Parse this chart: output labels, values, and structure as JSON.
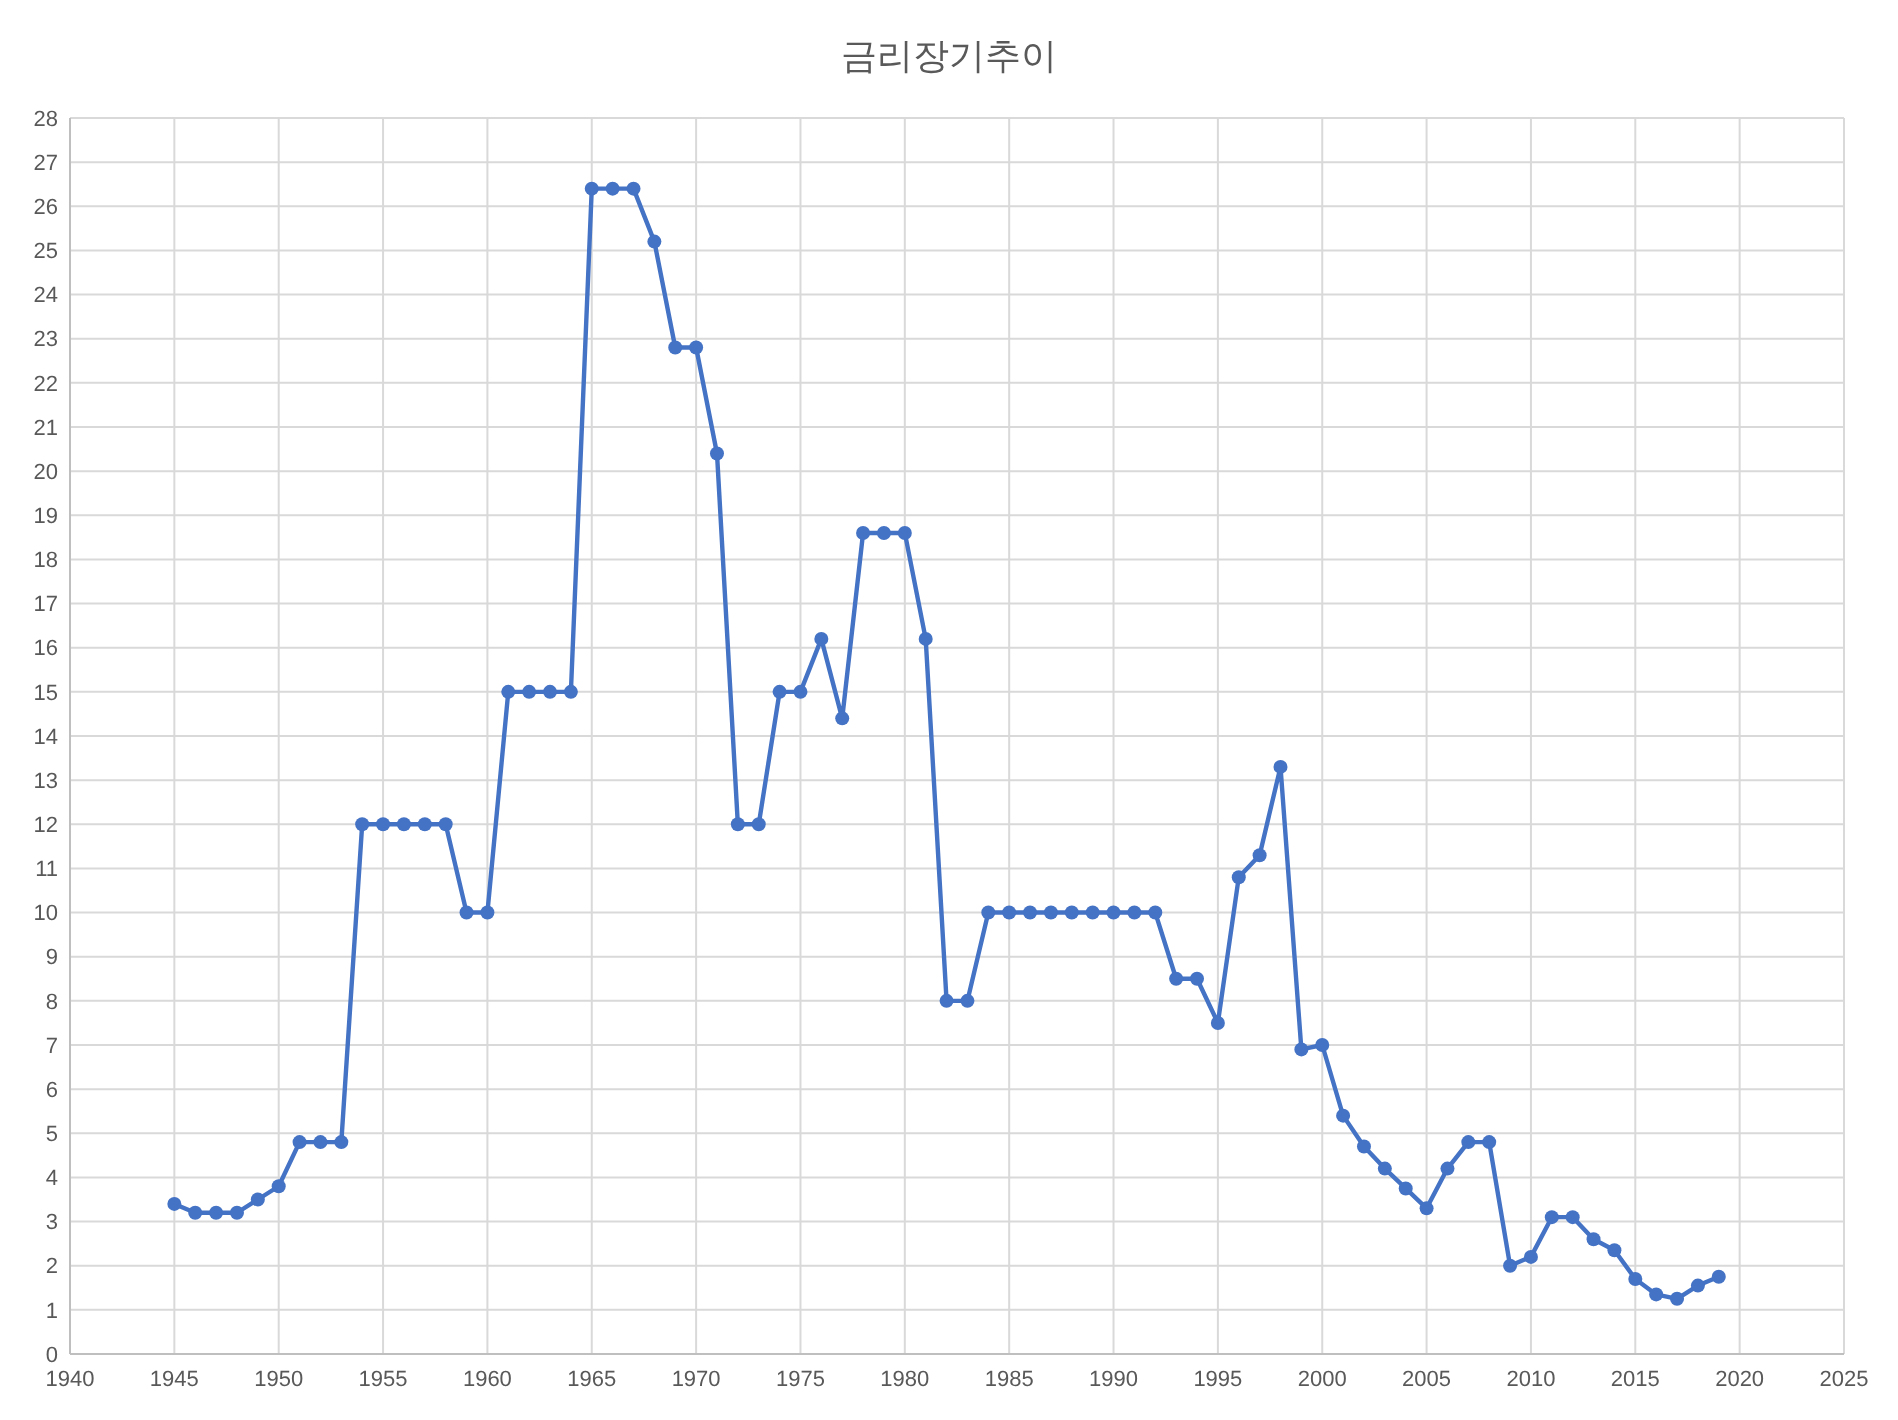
{
  "chart_data": {
    "type": "line",
    "title": "금리장기추이",
    "x": [
      1945,
      1946,
      1947,
      1948,
      1949,
      1950,
      1951,
      1952,
      1953,
      1954,
      1955,
      1956,
      1957,
      1958,
      1959,
      1960,
      1961,
      1962,
      1963,
      1964,
      1965,
      1966,
      1967,
      1968,
      1969,
      1970,
      1971,
      1972,
      1973,
      1974,
      1975,
      1976,
      1977,
      1978,
      1979,
      1980,
      1981,
      1982,
      1983,
      1984,
      1985,
      1986,
      1987,
      1988,
      1989,
      1990,
      1991,
      1992,
      1993,
      1994,
      1995,
      1996,
      1997,
      1998,
      1999,
      2000,
      2001,
      2002,
      2003,
      2004,
      2005,
      2006,
      2007,
      2008,
      2009,
      2010,
      2011,
      2012,
      2013,
      2014,
      2015,
      2016,
      2017,
      2018,
      2019
    ],
    "series": [
      {
        "color": "#4472c4",
        "values": [
          3.4,
          3.2,
          3.2,
          3.2,
          3.5,
          3.8,
          4.8,
          4.8,
          4.8,
          12,
          12,
          12,
          12,
          12,
          10,
          10,
          15,
          15,
          15,
          15,
          26.4,
          26.4,
          26.4,
          25.2,
          22.8,
          22.8,
          20.4,
          12,
          12,
          15,
          15,
          16.2,
          14.4,
          18.6,
          18.6,
          18.6,
          16.2,
          8,
          8,
          10,
          10,
          10,
          10,
          10,
          10,
          10,
          10,
          10,
          8.5,
          8.5,
          7.5,
          10.8,
          11.3,
          13.3,
          6.9,
          7,
          5.4,
          4.7,
          4.2,
          3.75,
          3.3,
          4.2,
          4.8,
          4.8,
          2,
          2.2,
          3.1,
          3.1,
          2.6,
          2.35,
          1.7,
          1.35,
          1.25,
          1.55,
          1.75
        ]
      }
    ],
    "xlim": [
      1940,
      2025
    ],
    "xticks": [
      1940,
      1945,
      1950,
      1955,
      1960,
      1965,
      1970,
      1975,
      1980,
      1985,
      1990,
      1995,
      2000,
      2005,
      2010,
      2015,
      2020,
      2025
    ],
    "ylim": [
      0,
      28
    ],
    "yticks": [
      0,
      1,
      2,
      3,
      4,
      5,
      6,
      7,
      8,
      9,
      10,
      11,
      12,
      13,
      14,
      15,
      16,
      17,
      18,
      19,
      20,
      21,
      22,
      23,
      24,
      25,
      26,
      27,
      28
    ],
    "grid": true,
    "marker": "circle",
    "line_style": "solid"
  }
}
